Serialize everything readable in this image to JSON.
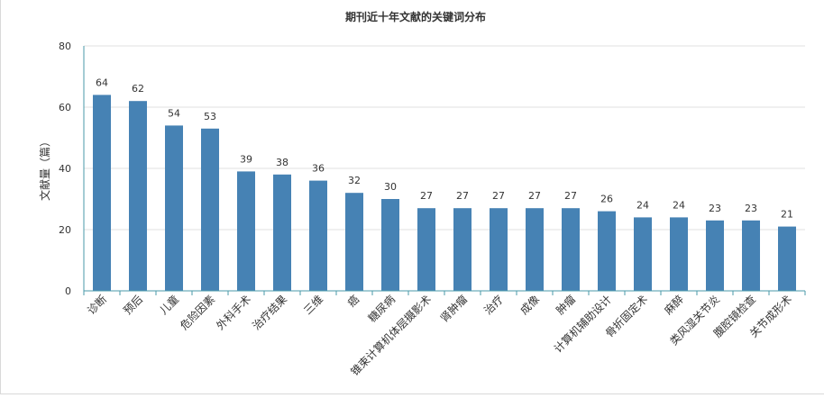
{
  "chart_data": {
    "type": "bar",
    "title": "期刊近十年文献的关键词分布",
    "xlabel": "",
    "ylabel": "文献量（篇）",
    "ylim": [
      0,
      80
    ],
    "yticks": [
      0,
      20,
      40,
      60,
      80
    ],
    "grid": true,
    "categories": [
      "诊断",
      "预后",
      "儿童",
      "危险因素",
      "外科手术",
      "治疗结果",
      "三维",
      "癌",
      "糖尿病",
      "锥束计算机体层摄影术",
      "肾肿瘤",
      "治疗",
      "成像",
      "肿瘤",
      "计算机辅助设计",
      "骨折固定术",
      "麻醉",
      "类风湿关节炎",
      "腹腔镜检查",
      "关节成形术"
    ],
    "values": [
      64,
      62,
      54,
      53,
      39,
      38,
      36,
      32,
      30,
      27,
      27,
      27,
      27,
      27,
      26,
      24,
      24,
      23,
      23,
      21
    ],
    "colors": {
      "bar": "#4682b4",
      "grid": "#e0e0e0",
      "axis": "#4a9aa8",
      "text": "#333333"
    }
  }
}
